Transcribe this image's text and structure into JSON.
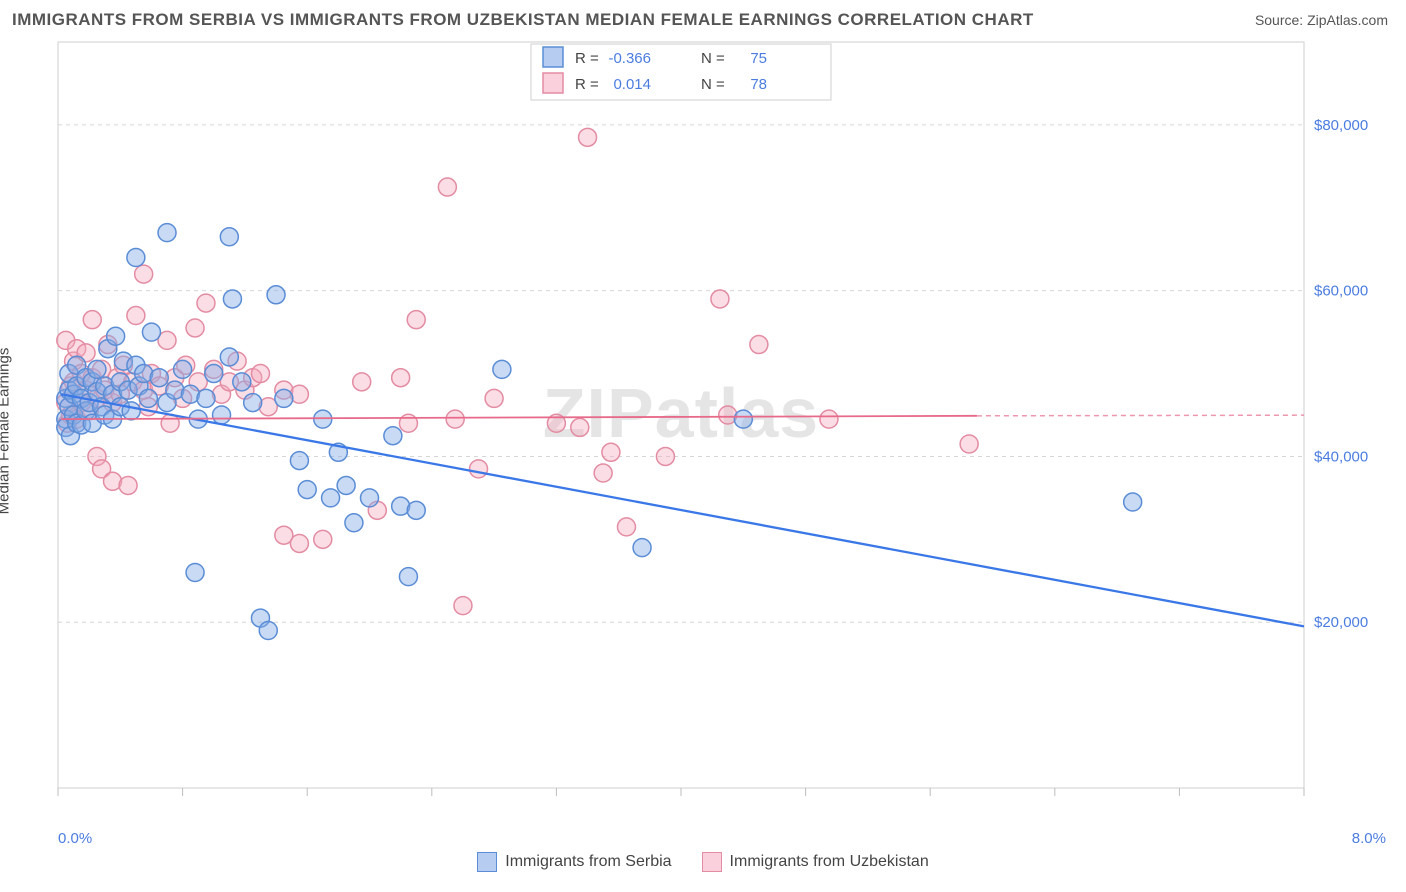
{
  "header": {
    "title": "IMMIGRANTS FROM SERBIA VS IMMIGRANTS FROM UZBEKISTAN MEDIAN FEMALE EARNINGS CORRELATION CHART",
    "source": "Source: ZipAtlas.com"
  },
  "y_axis_label": "Median Female Earnings",
  "watermark": {
    "zip": "ZIP",
    "rest": "atlas"
  },
  "chart": {
    "type": "scatter",
    "xlim": [
      0.0,
      8.0
    ],
    "ylim": [
      0,
      90000
    ],
    "x_unit": "%",
    "y_unit": "$",
    "x_tick_positions": [
      0.0,
      0.8,
      1.6,
      2.4,
      3.2,
      4.0,
      4.8,
      5.6,
      6.4,
      7.2,
      8.0
    ],
    "x_tick_labels_shown": {
      "first": "0.0%",
      "last": "8.0%"
    },
    "y_ticks": [
      {
        "v": 20000,
        "label": "$20,000"
      },
      {
        "v": 40000,
        "label": "$40,000"
      },
      {
        "v": 60000,
        "label": "$60,000"
      },
      {
        "v": 80000,
        "label": "$80,000"
      }
    ],
    "grid_color": "#d6d6d6",
    "background": "#ffffff",
    "plot_border_color": "#cfcfcf"
  },
  "series": [
    {
      "id": "serbia",
      "label": "Immigrants from Serbia",
      "color_fill": "rgba(133,172,231,0.45)",
      "color_stroke": "#5b8dd6",
      "trend_color": "#3b78e7",
      "marker_radius": 9,
      "R": "-0.366",
      "N": "75",
      "trend": {
        "x1": 0.02,
        "y1": 47500,
        "x2": 8.0,
        "y2": 19500
      },
      "points": [
        [
          0.05,
          47000
        ],
        [
          0.05,
          44500
        ],
        [
          0.05,
          43500
        ],
        [
          0.07,
          46000
        ],
        [
          0.07,
          48000
        ],
        [
          0.07,
          50000
        ],
        [
          0.08,
          42500
        ],
        [
          0.1,
          45000
        ],
        [
          0.1,
          47500
        ],
        [
          0.12,
          48500
        ],
        [
          0.12,
          44000
        ],
        [
          0.12,
          51000
        ],
        [
          0.15,
          47000
        ],
        [
          0.15,
          43800
        ],
        [
          0.18,
          49500
        ],
        [
          0.18,
          45500
        ],
        [
          0.2,
          46500
        ],
        [
          0.22,
          49000
        ],
        [
          0.22,
          44000
        ],
        [
          0.25,
          47800
        ],
        [
          0.25,
          50500
        ],
        [
          0.28,
          46000
        ],
        [
          0.3,
          48500
        ],
        [
          0.3,
          45000
        ],
        [
          0.32,
          53000
        ],
        [
          0.35,
          47500
        ],
        [
          0.35,
          44500
        ],
        [
          0.37,
          54500
        ],
        [
          0.4,
          49000
        ],
        [
          0.4,
          46000
        ],
        [
          0.42,
          51500
        ],
        [
          0.45,
          48000
        ],
        [
          0.47,
          45500
        ],
        [
          0.5,
          51000
        ],
        [
          0.5,
          64000
        ],
        [
          0.52,
          48500
        ],
        [
          0.55,
          50000
        ],
        [
          0.58,
          47000
        ],
        [
          0.6,
          55000
        ],
        [
          0.65,
          49500
        ],
        [
          0.7,
          46500
        ],
        [
          0.7,
          67000
        ],
        [
          0.75,
          48000
        ],
        [
          0.8,
          50500
        ],
        [
          0.85,
          47500
        ],
        [
          0.88,
          26000
        ],
        [
          0.9,
          44500
        ],
        [
          0.95,
          47000
        ],
        [
          1.0,
          50000
        ],
        [
          1.05,
          45000
        ],
        [
          1.1,
          52000
        ],
        [
          1.1,
          66500
        ],
        [
          1.12,
          59000
        ],
        [
          1.18,
          49000
        ],
        [
          1.25,
          46500
        ],
        [
          1.3,
          20500
        ],
        [
          1.35,
          19000
        ],
        [
          1.4,
          59500
        ],
        [
          1.45,
          47000
        ],
        [
          1.55,
          39500
        ],
        [
          1.6,
          36000
        ],
        [
          1.7,
          44500
        ],
        [
          1.75,
          35000
        ],
        [
          1.8,
          40500
        ],
        [
          1.85,
          36500
        ],
        [
          1.9,
          32000
        ],
        [
          2.0,
          35000
        ],
        [
          2.15,
          42500
        ],
        [
          2.2,
          34000
        ],
        [
          2.25,
          25500
        ],
        [
          2.3,
          33500
        ],
        [
          2.85,
          50500
        ],
        [
          3.75,
          29000
        ],
        [
          4.4,
          44500
        ],
        [
          6.9,
          34500
        ]
      ]
    },
    {
      "id": "uzbekistan",
      "label": "Immigrants from Uzbekistan",
      "color_fill": "rgba(244,170,190,0.4)",
      "color_stroke": "#e38ca3",
      "trend_color": "#e76a8a",
      "marker_radius": 9,
      "R": "0.014",
      "N": "78",
      "trend": {
        "x1": 0.02,
        "y1": 44500,
        "x2": 5.9,
        "y2": 44900
      },
      "trend_dash": {
        "x1": 5.9,
        "y1": 44900,
        "x2": 8.0,
        "y2": 44980
      },
      "points": [
        [
          0.05,
          46500
        ],
        [
          0.05,
          54000
        ],
        [
          0.06,
          44000
        ],
        [
          0.08,
          48500
        ],
        [
          0.08,
          45000
        ],
        [
          0.1,
          49000
        ],
        [
          0.1,
          51500
        ],
        [
          0.12,
          44500
        ],
        [
          0.12,
          53000
        ],
        [
          0.15,
          46500
        ],
        [
          0.15,
          50000
        ],
        [
          0.18,
          48000
        ],
        [
          0.18,
          52500
        ],
        [
          0.2,
          45500
        ],
        [
          0.22,
          49500
        ],
        [
          0.22,
          56500
        ],
        [
          0.25,
          47000
        ],
        [
          0.25,
          40000
        ],
        [
          0.28,
          50500
        ],
        [
          0.28,
          38500
        ],
        [
          0.3,
          48000
        ],
        [
          0.32,
          53500
        ],
        [
          0.35,
          46500
        ],
        [
          0.35,
          37000
        ],
        [
          0.38,
          49500
        ],
        [
          0.4,
          47500
        ],
        [
          0.42,
          51000
        ],
        [
          0.45,
          36500
        ],
        [
          0.48,
          49000
        ],
        [
          0.5,
          57000
        ],
        [
          0.55,
          48000
        ],
        [
          0.55,
          62000
        ],
        [
          0.58,
          46000
        ],
        [
          0.6,
          50000
        ],
        [
          0.65,
          48500
        ],
        [
          0.7,
          54000
        ],
        [
          0.72,
          44000
        ],
        [
          0.75,
          49500
        ],
        [
          0.8,
          47000
        ],
        [
          0.82,
          51000
        ],
        [
          0.88,
          55500
        ],
        [
          0.9,
          49000
        ],
        [
          0.95,
          58500
        ],
        [
          1.0,
          50500
        ],
        [
          1.05,
          47500
        ],
        [
          1.1,
          49000
        ],
        [
          1.15,
          51500
        ],
        [
          1.2,
          48000
        ],
        [
          1.25,
          49500
        ],
        [
          1.3,
          50000
        ],
        [
          1.35,
          46000
        ],
        [
          1.45,
          48000
        ],
        [
          1.45,
          30500
        ],
        [
          1.55,
          47500
        ],
        [
          1.55,
          29500
        ],
        [
          1.7,
          30000
        ],
        [
          1.95,
          49000
        ],
        [
          2.05,
          33500
        ],
        [
          2.2,
          49500
        ],
        [
          2.25,
          44000
        ],
        [
          2.3,
          56500
        ],
        [
          2.5,
          72500
        ],
        [
          2.55,
          44500
        ],
        [
          2.6,
          22000
        ],
        [
          2.7,
          38500
        ],
        [
          2.8,
          47000
        ],
        [
          3.2,
          44000
        ],
        [
          3.35,
          43500
        ],
        [
          3.4,
          78500
        ],
        [
          3.5,
          38000
        ],
        [
          3.55,
          40500
        ],
        [
          3.65,
          31500
        ],
        [
          3.9,
          40000
        ],
        [
          4.25,
          59000
        ],
        [
          4.3,
          45000
        ],
        [
          4.5,
          53500
        ],
        [
          4.95,
          44500
        ],
        [
          5.85,
          41500
        ]
      ]
    }
  ],
  "legend_top": {
    "rows": [
      {
        "swatch": "blue",
        "R_label": "R =",
        "R_value": "-0.366",
        "N_label": "N =",
        "N_value": "75"
      },
      {
        "swatch": "pink",
        "R_label": "R =",
        "R_value": "0.014",
        "N_label": "N =",
        "N_value": "78"
      }
    ]
  },
  "legend_bottom": {
    "serbia": "Immigrants from Serbia",
    "uzbekistan": "Immigrants from Uzbekistan"
  }
}
